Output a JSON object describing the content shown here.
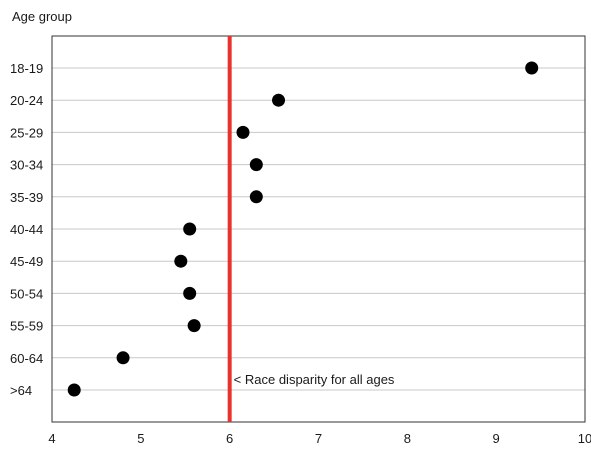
{
  "chart_data": {
    "type": "scatter",
    "title": "",
    "xlabel": "",
    "ylabel": "Age group",
    "xlim": [
      4,
      10
    ],
    "x_ticks": [
      4,
      5,
      6,
      7,
      8,
      9,
      10
    ],
    "grid": "horizontal",
    "categories": [
      "18-19",
      "20-24",
      "25-29",
      "30-34",
      "35-39",
      "40-44",
      "45-49",
      "50-54",
      "55-59",
      "60-64",
      ">64"
    ],
    "values": [
      9.4,
      6.55,
      6.15,
      6.3,
      6.3,
      5.55,
      5.45,
      5.55,
      5.6,
      4.8,
      4.25
    ],
    "reference_line": {
      "x": 6,
      "label": "< Race disparity for all ages",
      "color": "#e8332c"
    },
    "marker_color": "#000000"
  }
}
